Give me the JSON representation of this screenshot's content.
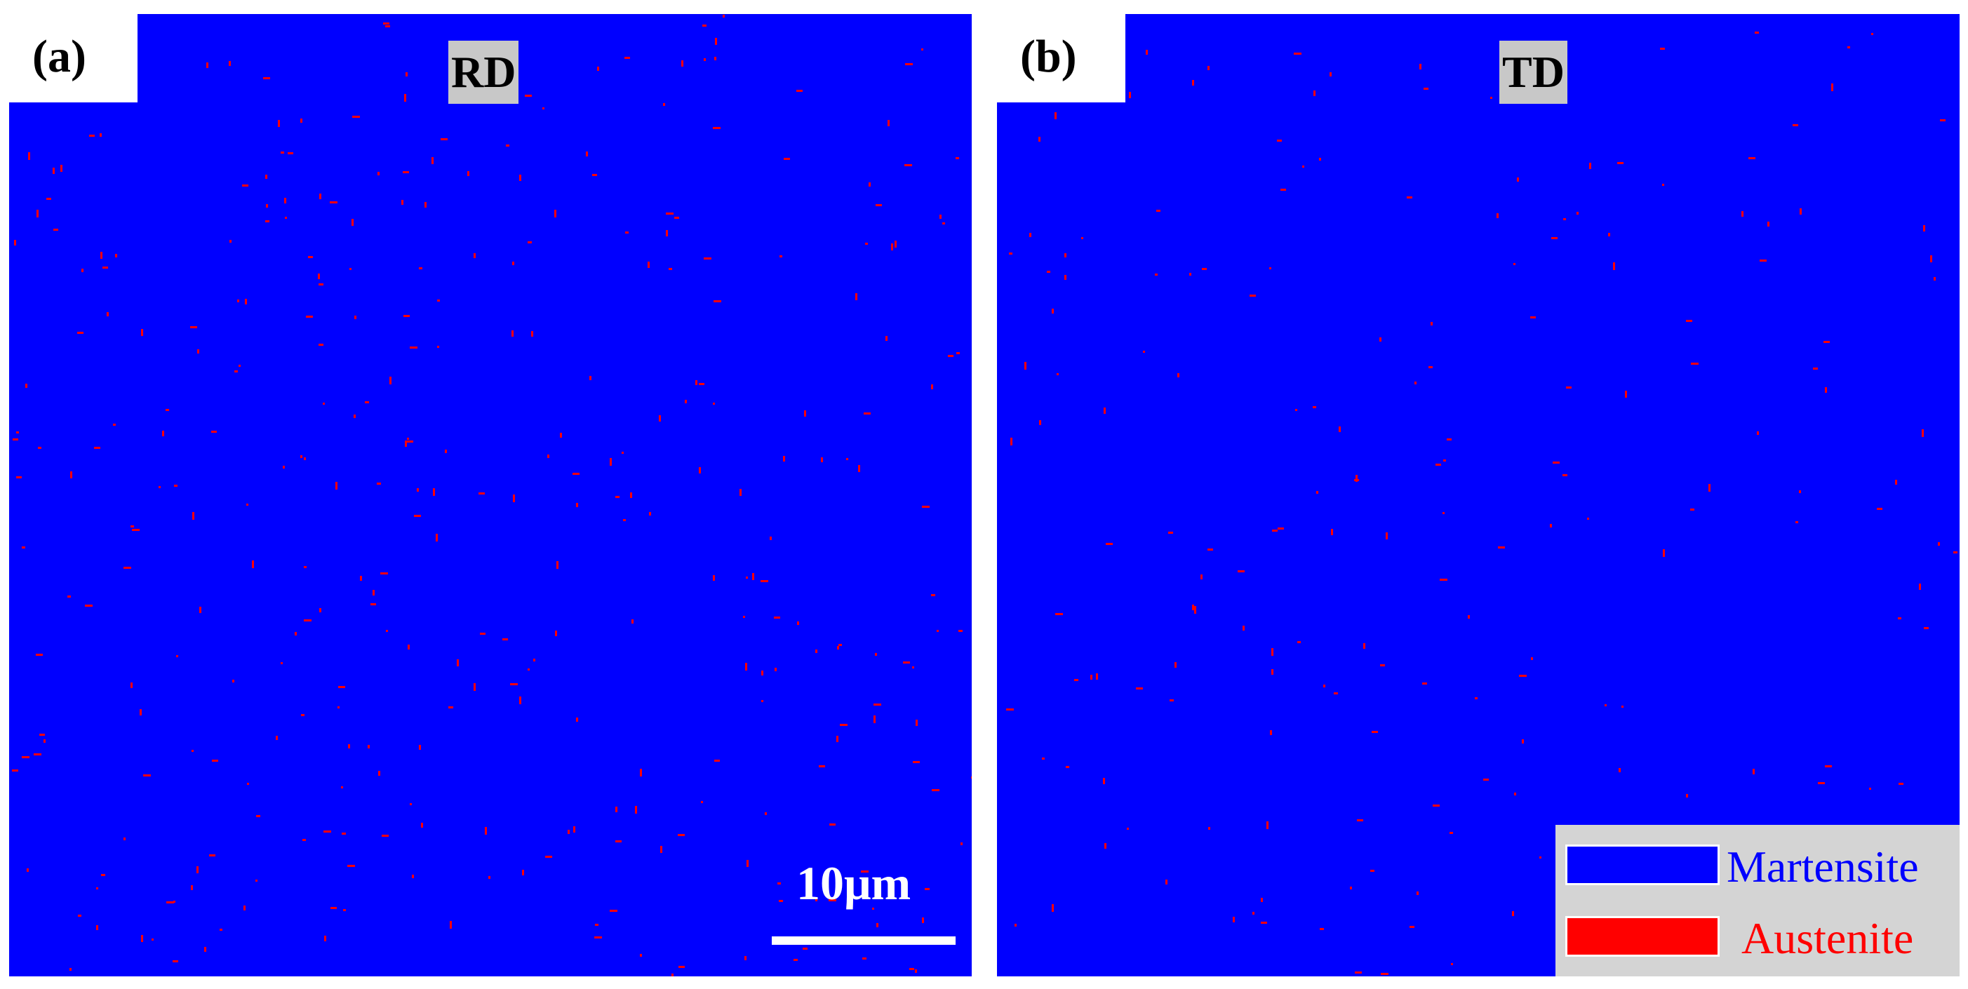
{
  "panels": [
    {
      "label": "(a)",
      "direction": "RD"
    },
    {
      "label": "(b)",
      "direction": "TD"
    }
  ],
  "scale_bar": {
    "text": "10μm"
  },
  "legend": [
    {
      "name": "Martensite",
      "color": "#0000ff"
    },
    {
      "name": "Austenite",
      "color": "#ff0000"
    }
  ],
  "colors": {
    "martensite": "#0000ff",
    "austenite": "#ff0000"
  }
}
